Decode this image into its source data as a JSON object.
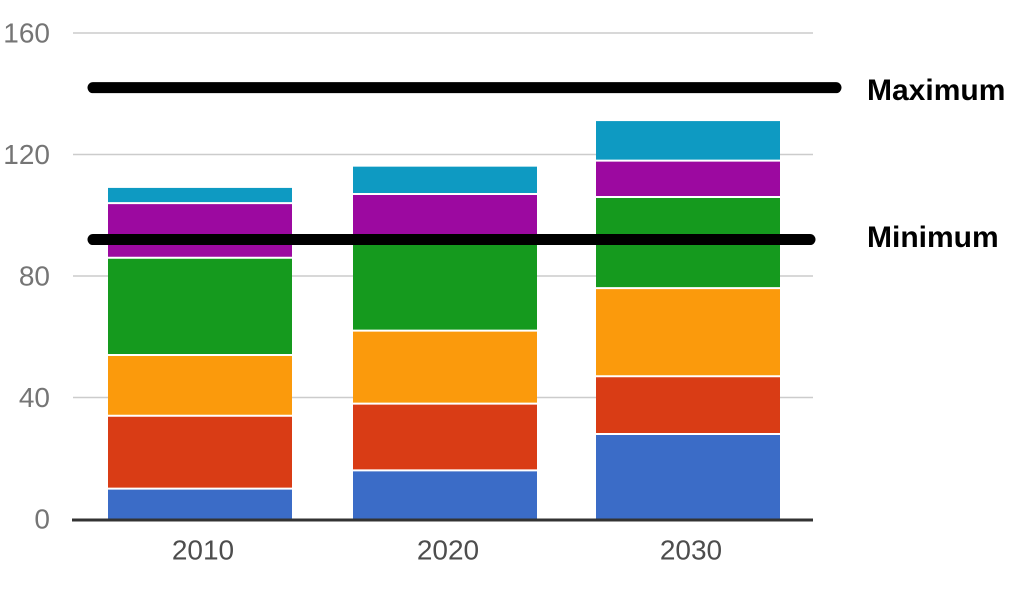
{
  "chart_data": {
    "type": "bar",
    "subtype": "stacked-column",
    "title": "",
    "xlabel": "",
    "ylabel": "",
    "categories": [
      "2010",
      "2020",
      "2030"
    ],
    "series": [
      {
        "name": "blue",
        "color": "#3b6cc7",
        "values": [
          10,
          16,
          28
        ]
      },
      {
        "name": "red",
        "color": "#d93c15",
        "values": [
          24,
          22,
          19
        ]
      },
      {
        "name": "orange",
        "color": "#fb9a0c",
        "values": [
          20,
          24,
          29
        ]
      },
      {
        "name": "green",
        "color": "#159a1e",
        "values": [
          32,
          30,
          30
        ]
      },
      {
        "name": "purple",
        "color": "#9c09a0",
        "values": [
          18,
          15,
          12
        ]
      },
      {
        "name": "cyan",
        "color": "#0e9ac2",
        "values": [
          5,
          9,
          13
        ]
      }
    ],
    "stack_totals": [
      109,
      116,
      131
    ],
    "reference_lines": [
      {
        "label": "Maximum",
        "value": 142,
        "color": "#000000"
      },
      {
        "label": "Minimum",
        "value": 92,
        "color": "#000000"
      }
    ],
    "ylim": [
      0,
      160
    ],
    "yticks": [
      0,
      40,
      80,
      120,
      160
    ],
    "grid": true,
    "legend_position": "reference-line-labels-right"
  },
  "styles": {
    "background": "#ffffff",
    "gridline_color": "#cccccc",
    "axis_line_color": "#333333",
    "ytick_label_color": "#757575",
    "xtick_label_color": "#4d4d4d",
    "reference_label_color": "#000000",
    "segment_separator_color": "#ffffff"
  }
}
